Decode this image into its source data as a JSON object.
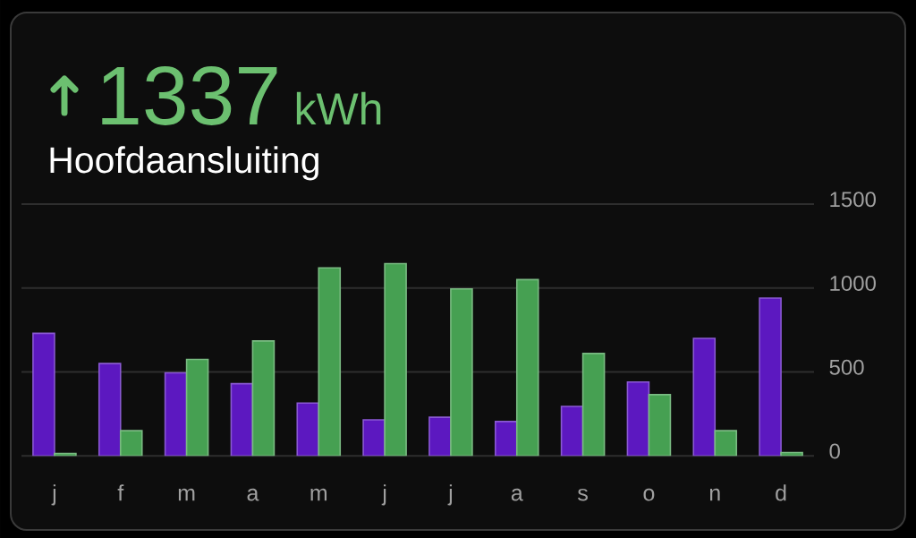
{
  "chart_data": {
    "type": "bar",
    "title": "1337",
    "subtitle": "Hoofdaansluiting",
    "annotations": [
      "kWh"
    ],
    "categories": [
      "j",
      "f",
      "m",
      "a",
      "m",
      "j",
      "j",
      "a",
      "s",
      "o",
      "n",
      "d"
    ],
    "series": [
      {
        "color": "#5c18c0",
        "values": [
          730,
          550,
          495,
          430,
          315,
          215,
          230,
          205,
          295,
          440,
          700,
          940
        ]
      },
      {
        "color": "#46a052",
        "values": [
          15,
          150,
          575,
          685,
          1120,
          1145,
          995,
          1050,
          610,
          365,
          150,
          20
        ]
      }
    ],
    "ylim": [
      0,
      1500
    ],
    "yticks": [
      0,
      500,
      1000,
      1500
    ],
    "grid": "y"
  }
}
